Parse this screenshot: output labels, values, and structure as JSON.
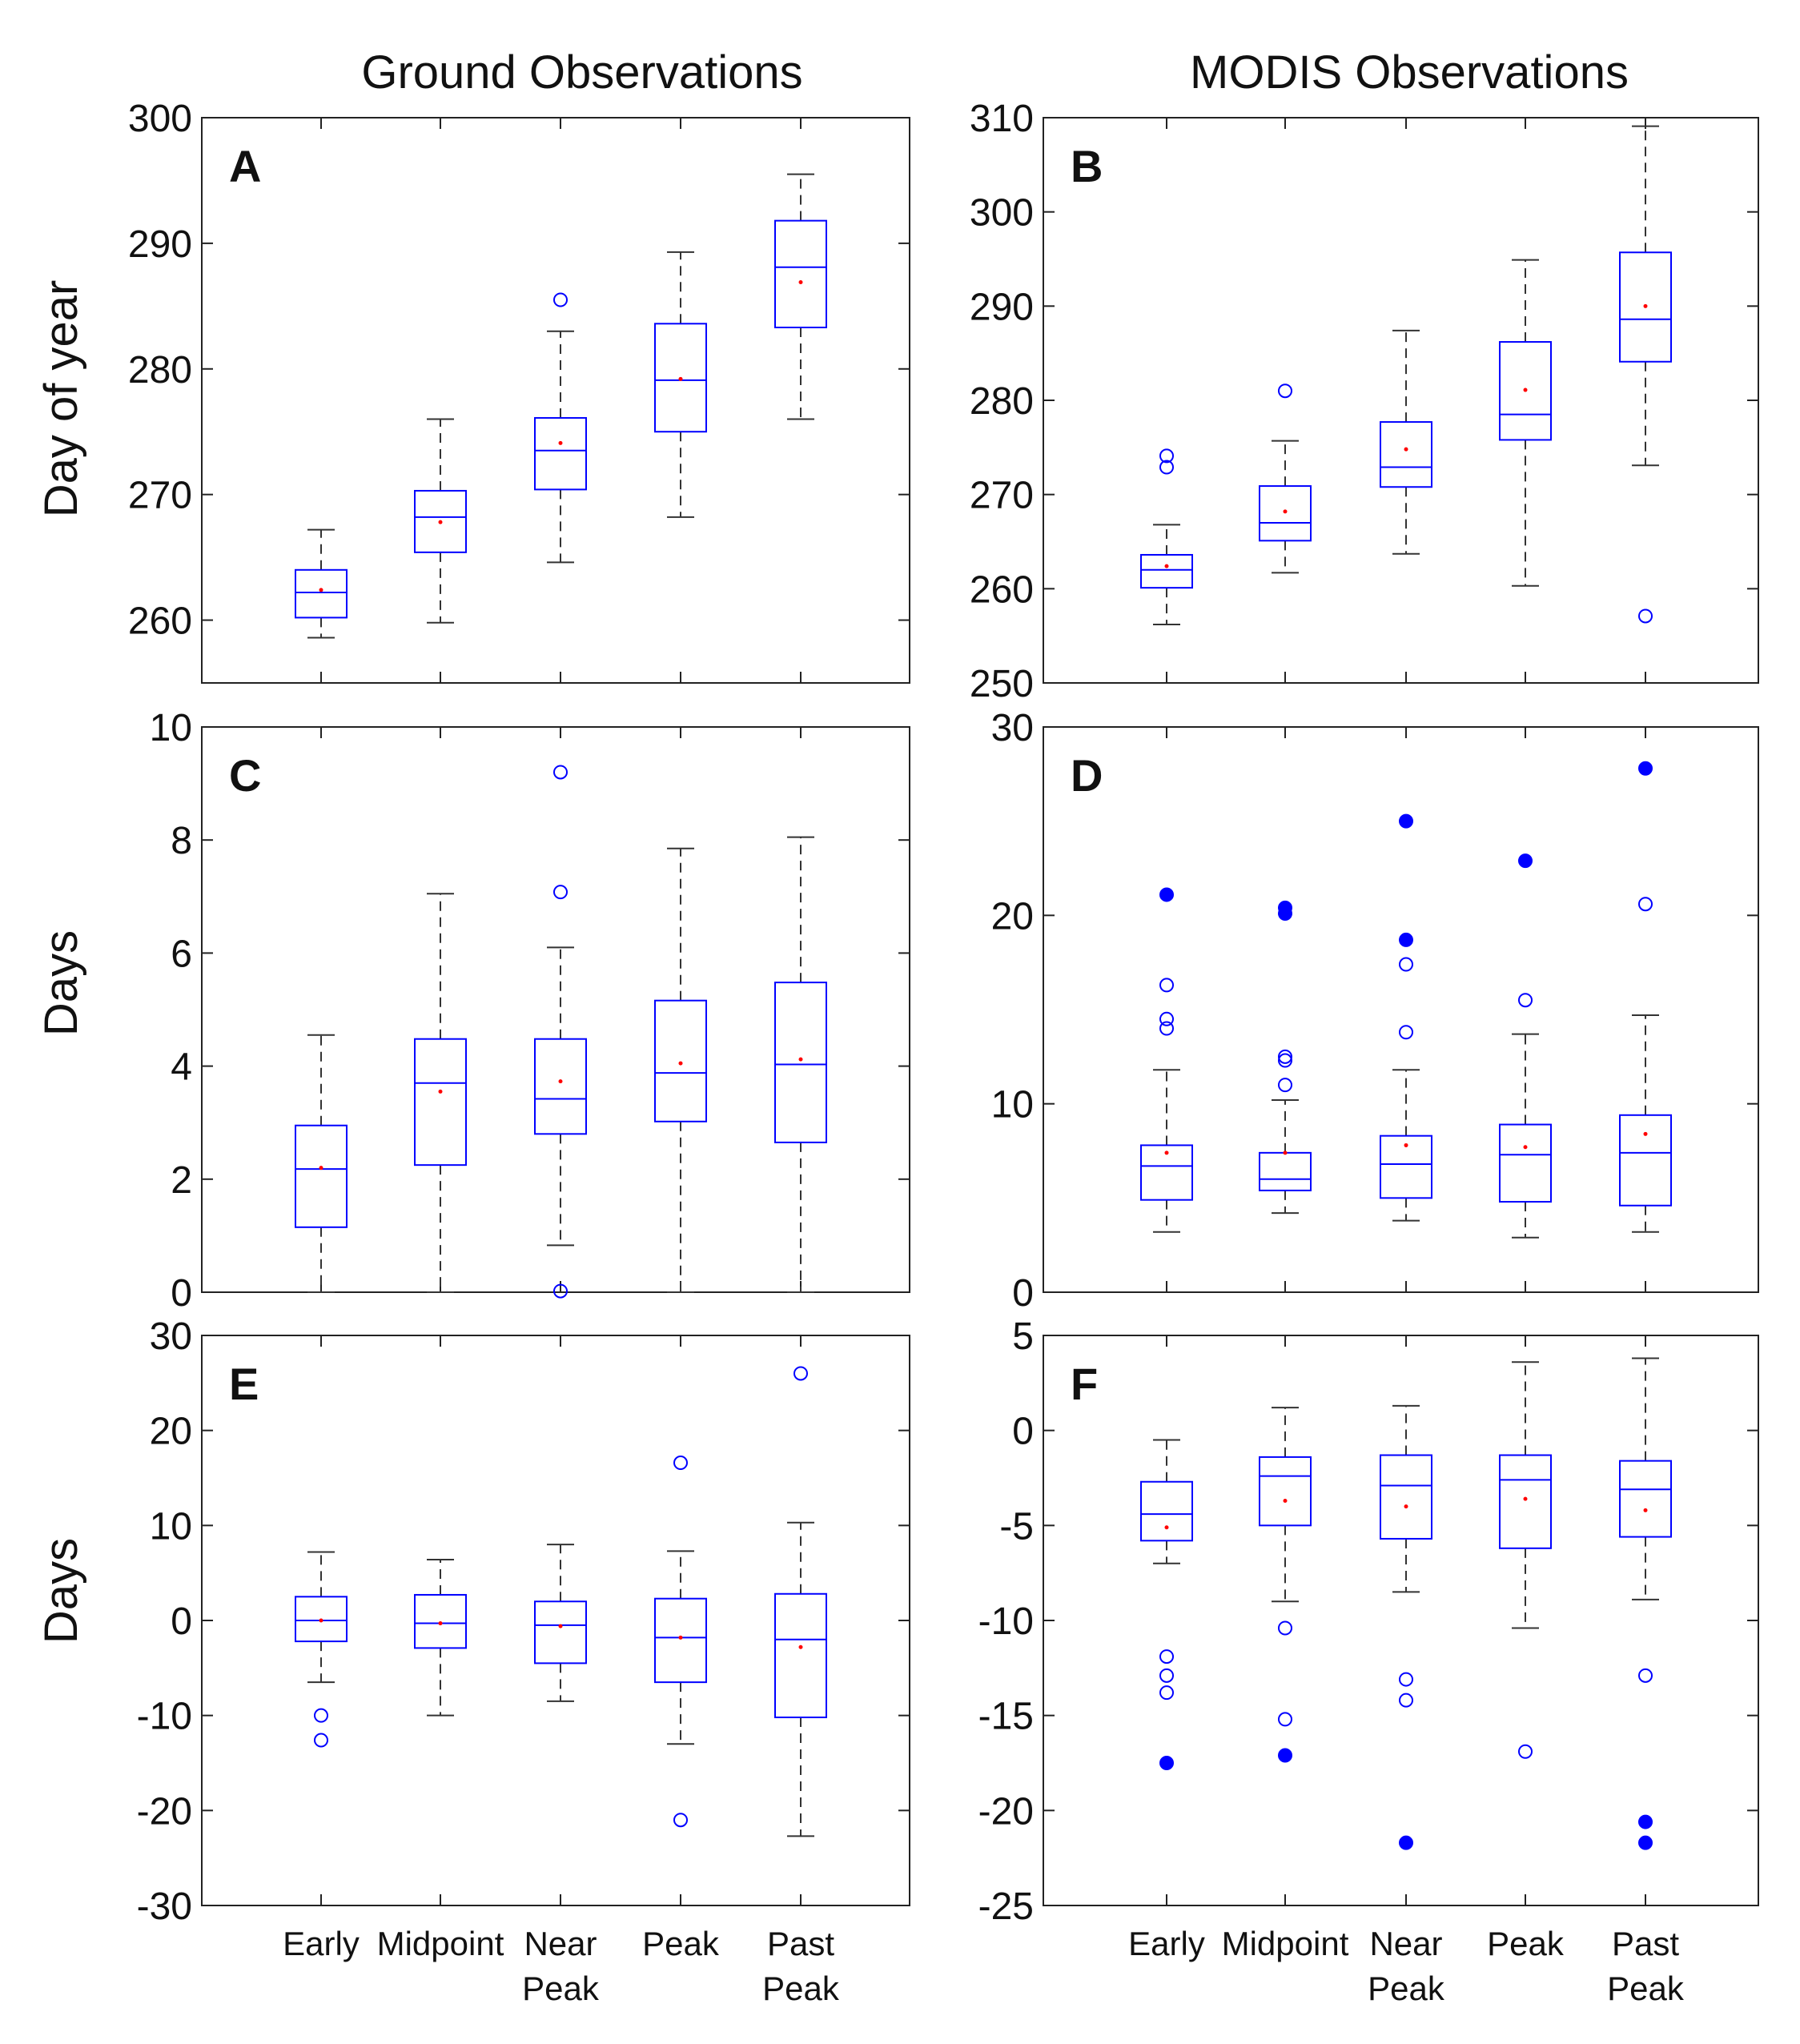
{
  "column_titles": [
    "Ground Observations",
    "MODIS Observations"
  ],
  "row_ylabels": [
    "Day of year",
    "Days",
    "Days"
  ],
  "colors": {
    "box": "#0000ff",
    "whisker": "#333333",
    "mean": "#ff0000",
    "outlier": "#0000ff",
    "axis": "#222222"
  },
  "chart_data": [
    {
      "type": "box",
      "panel_label": "A",
      "ylabel": "Day of year",
      "ylim": [
        255,
        300
      ],
      "yticks": [
        260,
        270,
        280,
        290,
        300
      ],
      "categories": [
        "Early",
        "Midpoint",
        "Near Peak",
        "Peak",
        "Past Peak"
      ],
      "boxes": [
        {
          "whisker_low": 258.6,
          "q1": 260.2,
          "median": 262.2,
          "q3": 264.0,
          "whisker_high": 267.2,
          "mean": 262.4,
          "outliers_open": [],
          "outliers_filled": []
        },
        {
          "whisker_low": 259.8,
          "q1": 265.4,
          "median": 268.2,
          "q3": 270.3,
          "whisker_high": 276.0,
          "mean": 267.8,
          "outliers_open": [],
          "outliers_filled": []
        },
        {
          "whisker_low": 264.6,
          "q1": 270.4,
          "median": 273.5,
          "q3": 276.1,
          "whisker_high": 283.0,
          "mean": 274.1,
          "outliers_open": [
            285.5
          ],
          "outliers_filled": []
        },
        {
          "whisker_low": 268.2,
          "q1": 275.0,
          "median": 279.1,
          "q3": 283.6,
          "whisker_high": 289.3,
          "mean": 279.2,
          "outliers_open": [],
          "outliers_filled": []
        },
        {
          "whisker_low": 276.0,
          "q1": 283.3,
          "median": 288.1,
          "q3": 291.8,
          "whisker_high": 295.5,
          "mean": 286.9,
          "outliers_open": [],
          "outliers_filled": []
        }
      ]
    },
    {
      "type": "box",
      "panel_label": "B",
      "ylabel": "",
      "ylim": [
        250,
        310
      ],
      "yticks": [
        250,
        260,
        270,
        280,
        290,
        300,
        310
      ],
      "categories": [
        "Early",
        "Midpoint",
        "Near Peak",
        "Peak",
        "Past Peak"
      ],
      "boxes": [
        {
          "whisker_low": 256.2,
          "q1": 260.1,
          "median": 262.0,
          "q3": 263.6,
          "whisker_high": 266.8,
          "mean": 262.4,
          "outliers_open": [
            272.9,
            274.1
          ],
          "outliers_filled": []
        },
        {
          "whisker_low": 261.7,
          "q1": 265.1,
          "median": 267.0,
          "q3": 270.9,
          "whisker_high": 275.7,
          "mean": 268.2,
          "outliers_open": [
            281.0
          ],
          "outliers_filled": []
        },
        {
          "whisker_low": 263.7,
          "q1": 270.8,
          "median": 272.9,
          "q3": 277.7,
          "whisker_high": 287.4,
          "mean": 274.8,
          "outliers_open": [],
          "outliers_filled": []
        },
        {
          "whisker_low": 260.3,
          "q1": 275.8,
          "median": 278.5,
          "q3": 286.2,
          "whisker_high": 294.9,
          "mean": 281.1,
          "outliers_open": [],
          "outliers_filled": []
        },
        {
          "whisker_low": 273.1,
          "q1": 284.1,
          "median": 288.6,
          "q3": 295.7,
          "whisker_high": 309.1,
          "mean": 290.0,
          "outliers_open": [
            257.1
          ],
          "outliers_filled": []
        }
      ]
    },
    {
      "type": "box",
      "panel_label": "C",
      "ylabel": "Days",
      "ylim": [
        0,
        10
      ],
      "yticks": [
        0,
        2,
        4,
        6,
        8,
        10
      ],
      "categories": [
        "Early",
        "Midpoint",
        "Near Peak",
        "Peak",
        "Past Peak"
      ],
      "boxes": [
        {
          "whisker_low": 0.0,
          "q1": 1.15,
          "median": 2.18,
          "q3": 2.95,
          "whisker_high": 4.55,
          "mean": 2.2,
          "outliers_open": [],
          "outliers_filled": []
        },
        {
          "whisker_low": 0.0,
          "q1": 2.25,
          "median": 3.7,
          "q3": 4.48,
          "whisker_high": 7.05,
          "mean": 3.55,
          "outliers_open": [],
          "outliers_filled": []
        },
        {
          "whisker_low": 0.83,
          "q1": 2.8,
          "median": 3.42,
          "q3": 4.48,
          "whisker_high": 6.1,
          "mean": 3.73,
          "outliers_open": [
            0.02,
            7.08,
            9.2
          ],
          "outliers_filled": []
        },
        {
          "whisker_low": 0.0,
          "q1": 3.02,
          "median": 3.88,
          "q3": 5.16,
          "whisker_high": 7.85,
          "mean": 4.05,
          "outliers_open": [],
          "outliers_filled": []
        },
        {
          "whisker_low": 0.0,
          "q1": 2.65,
          "median": 4.03,
          "q3": 5.48,
          "whisker_high": 8.05,
          "mean": 4.12,
          "outliers_open": [],
          "outliers_filled": []
        }
      ]
    },
    {
      "type": "box",
      "panel_label": "D",
      "ylabel": "",
      "ylim": [
        0,
        30
      ],
      "yticks": [
        0,
        10,
        20,
        30
      ],
      "categories": [
        "Early",
        "Midpoint",
        "Near Peak",
        "Peak",
        "Past Peak"
      ],
      "boxes": [
        {
          "whisker_low": 3.2,
          "q1": 4.9,
          "median": 6.7,
          "q3": 7.8,
          "whisker_high": 11.8,
          "mean": 7.4,
          "outliers_open": [
            14.0,
            14.5,
            16.3
          ],
          "outliers_filled": [
            21.1
          ]
        },
        {
          "whisker_low": 4.2,
          "q1": 5.4,
          "median": 6.0,
          "q3": 7.4,
          "whisker_high": 10.2,
          "mean": 7.4,
          "outliers_open": [
            11.0,
            12.3,
            12.5
          ],
          "outliers_filled": [
            20.1,
            20.4
          ]
        },
        {
          "whisker_low": 3.8,
          "q1": 5.0,
          "median": 6.8,
          "q3": 8.3,
          "whisker_high": 11.8,
          "mean": 7.8,
          "outliers_open": [
            13.8,
            17.4
          ],
          "outliers_filled": [
            18.7,
            25.0
          ]
        },
        {
          "whisker_low": 2.9,
          "q1": 4.8,
          "median": 7.3,
          "q3": 8.9,
          "whisker_high": 13.7,
          "mean": 7.7,
          "outliers_open": [
            15.5
          ],
          "outliers_filled": [
            22.9
          ]
        },
        {
          "whisker_low": 3.2,
          "q1": 4.6,
          "median": 7.4,
          "q3": 9.4,
          "whisker_high": 14.7,
          "mean": 8.4,
          "outliers_open": [
            20.6
          ],
          "outliers_filled": [
            27.8
          ]
        }
      ]
    },
    {
      "type": "box",
      "panel_label": "E",
      "ylabel": "Days",
      "ylim": [
        -30,
        30
      ],
      "yticks": [
        -30,
        -20,
        -10,
        0,
        10,
        20,
        30
      ],
      "categories": [
        "Early",
        "Midpoint",
        "Near Peak",
        "Peak",
        "Past Peak"
      ],
      "boxes": [
        {
          "whisker_low": -6.5,
          "q1": -2.2,
          "median": 0.0,
          "q3": 2.5,
          "whisker_high": 7.2,
          "mean": 0.0,
          "outliers_open": [
            -10.0,
            -12.6
          ],
          "outliers_filled": []
        },
        {
          "whisker_low": -10.0,
          "q1": -2.9,
          "median": -0.3,
          "q3": 2.7,
          "whisker_high": 6.4,
          "mean": -0.3,
          "outliers_open": [],
          "outliers_filled": []
        },
        {
          "whisker_low": -8.5,
          "q1": -4.5,
          "median": -0.5,
          "q3": 2.0,
          "whisker_high": 8.0,
          "mean": -0.6,
          "outliers_open": [],
          "outliers_filled": []
        },
        {
          "whisker_low": -13.0,
          "q1": -6.5,
          "median": -1.8,
          "q3": 2.3,
          "whisker_high": 7.3,
          "mean": -1.8,
          "outliers_open": [
            16.6,
            -21.0
          ],
          "outliers_filled": []
        },
        {
          "whisker_low": -22.7,
          "q1": -10.2,
          "median": -2.0,
          "q3": 2.8,
          "whisker_high": 10.3,
          "mean": -2.8,
          "outliers_open": [
            26.0
          ],
          "outliers_filled": []
        }
      ]
    },
    {
      "type": "box",
      "panel_label": "F",
      "ylabel": "",
      "ylim": [
        -25,
        5
      ],
      "yticks": [
        -25,
        -20,
        -15,
        -10,
        -5,
        0,
        5
      ],
      "categories": [
        "Early",
        "Midpoint",
        "Near Peak",
        "Peak",
        "Past Peak"
      ],
      "boxes": [
        {
          "whisker_low": -7.0,
          "q1": -5.8,
          "median": -4.4,
          "q3": -2.7,
          "whisker_high": -0.5,
          "mean": -5.1,
          "outliers_open": [
            -11.9,
            -12.9,
            -13.8
          ],
          "outliers_filled": [
            -17.5
          ]
        },
        {
          "whisker_low": -9.0,
          "q1": -5.0,
          "median": -2.4,
          "q3": -1.4,
          "whisker_high": 1.2,
          "mean": -3.7,
          "outliers_open": [
            -10.4,
            -15.2
          ],
          "outliers_filled": [
            -17.1
          ]
        },
        {
          "whisker_low": -8.5,
          "q1": -5.7,
          "median": -2.9,
          "q3": -1.3,
          "whisker_high": 1.3,
          "mean": -4.0,
          "outliers_open": [
            -13.1,
            -14.2
          ],
          "outliers_filled": [
            -21.7
          ]
        },
        {
          "whisker_low": -10.4,
          "q1": -6.2,
          "median": -2.6,
          "q3": -1.3,
          "whisker_high": 3.6,
          "mean": -3.6,
          "outliers_open": [
            -16.9
          ],
          "outliers_filled": []
        },
        {
          "whisker_low": -8.9,
          "q1": -5.6,
          "median": -3.1,
          "q3": -1.6,
          "whisker_high": 3.8,
          "mean": -4.2,
          "outliers_open": [
            -12.9
          ],
          "outliers_filled": [
            -20.6,
            -21.7
          ]
        }
      ]
    }
  ],
  "xtick_labels": [
    [
      "Early"
    ],
    [
      "Midpoint"
    ],
    [
      "Near",
      "Peak"
    ],
    [
      "Peak"
    ],
    [
      "Past",
      "Peak"
    ]
  ]
}
